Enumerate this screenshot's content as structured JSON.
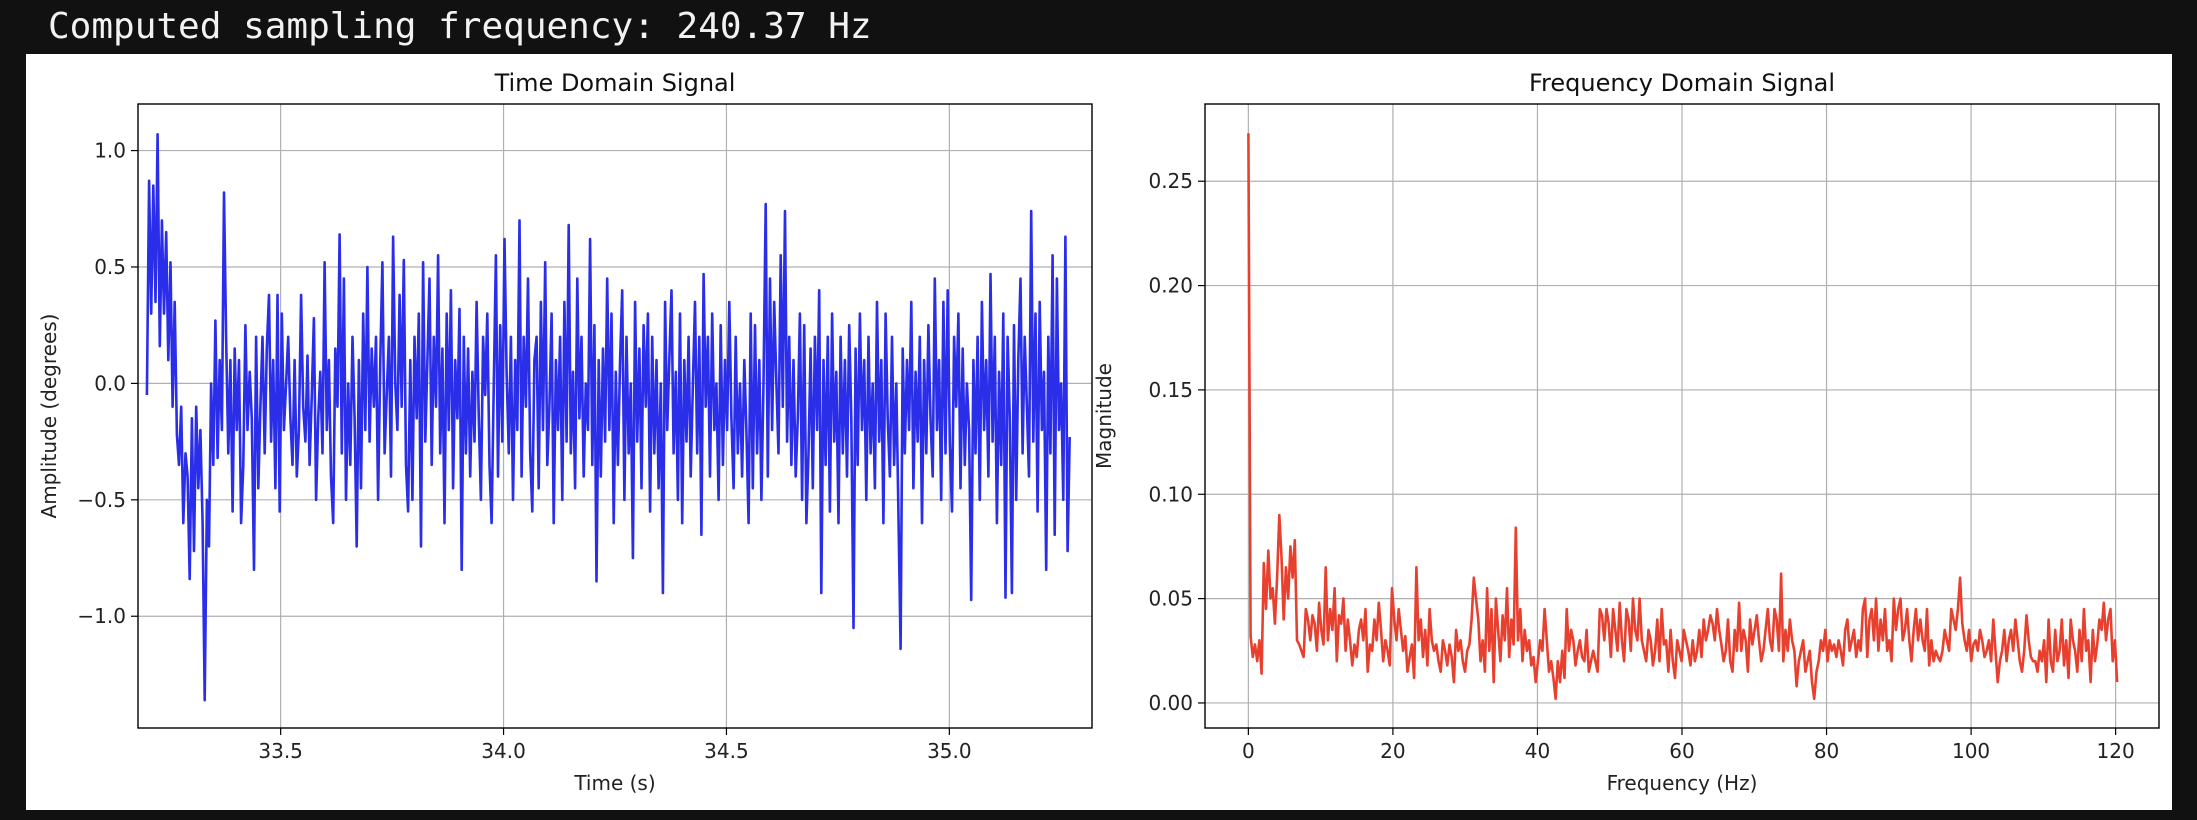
{
  "output": {
    "text": "Computed sampling frequency: 240.37 Hz"
  },
  "colors": {
    "background": "#111111",
    "figure": "#ffffff",
    "grid": "#b0b0b0",
    "time_series": "#2a2ee8",
    "freq_series": "#e8402f"
  },
  "chart_data": [
    {
      "type": "line",
      "title": "Time Domain Signal",
      "xlabel": "Time (s)",
      "ylabel": "Amplitude (degrees)",
      "xlim": [
        33.18,
        35.32
      ],
      "ylim": [
        -1.48,
        1.2
      ],
      "xticks": [
        33.5,
        34.0,
        34.5,
        35.0
      ],
      "xtick_labels": [
        "33.5",
        "34.0",
        "34.5",
        "35.0"
      ],
      "yticks": [
        -1.0,
        -0.5,
        0.0,
        0.5,
        1.0
      ],
      "ytick_labels": [
        "−1.0",
        "−0.5",
        "0.0",
        "0.5",
        "1.0"
      ],
      "grid": true,
      "color": "#2a2ee8",
      "x_start": 33.2,
      "x_end": 35.27,
      "values": [
        -0.05,
        0.87,
        0.3,
        0.85,
        0.35,
        1.07,
        0.16,
        0.7,
        0.3,
        0.65,
        0.1,
        0.52,
        -0.1,
        0.35,
        -0.22,
        -0.35,
        -0.1,
        -0.6,
        -0.3,
        -0.4,
        -0.84,
        -0.15,
        -0.72,
        -0.1,
        -0.45,
        -0.2,
        -0.6,
        -1.36,
        -0.5,
        -0.7,
        0.0,
        -0.35,
        0.27,
        -0.32,
        0.1,
        -0.2,
        0.82,
        0.2,
        -0.3,
        0.1,
        -0.55,
        0.15,
        -0.2,
        0.1,
        -0.6,
        -0.35,
        0.25,
        -0.2,
        0.05,
        -0.15,
        -0.8,
        0.2,
        -0.45,
        -0.1,
        0.2,
        -0.3,
        0.15,
        0.38,
        -0.25,
        0.1,
        -0.45,
        0.38,
        -0.55,
        0.3,
        -0.2,
        0.0,
        0.2,
        -0.15,
        -0.35,
        0.1,
        -0.4,
        -0.2,
        0.38,
        -0.1,
        -0.25,
        0.12,
        -0.35,
        -0.05,
        0.28,
        -0.5,
        -0.15,
        0.05,
        -0.3,
        0.52,
        -0.2,
        0.1,
        -0.4,
        -0.6,
        0.15,
        -0.1,
        0.64,
        -0.3,
        0.45,
        -0.5,
        0.0,
        -0.35,
        0.2,
        -0.15,
        -0.7,
        0.1,
        -0.45,
        0.3,
        -0.2,
        0.5,
        -0.25,
        0.15,
        -0.1,
        0.2,
        -0.5,
        0.1,
        0.52,
        -0.3,
        -0.05,
        0.2,
        -0.4,
        0.63,
        0.0,
        -0.2,
        0.38,
        -0.1,
        0.53,
        -0.35,
        -0.55,
        0.1,
        -0.5,
        0.2,
        -0.15,
        0.3,
        -0.7,
        0.52,
        -0.25,
        0.1,
        0.45,
        -0.35,
        0.2,
        -0.1,
        0.55,
        -0.3,
        0.15,
        -0.6,
        0.3,
        -0.2,
        0.4,
        -0.45,
        0.1,
        -0.15,
        0.32,
        -0.8,
        0.2,
        -0.3,
        0.15,
        -0.4,
        0.05,
        -0.25,
        0.35,
        -0.15,
        -0.5,
        0.2,
        -0.05,
        0.3,
        -0.35,
        -0.6,
        0.0,
        0.55,
        -0.4,
        0.25,
        -0.25,
        0.62,
        0.05,
        -0.3,
        0.2,
        -0.5,
        0.1,
        -0.2,
        0.7,
        -0.4,
        0.2,
        -0.1,
        0.45,
        -0.3,
        -0.55,
        0.1,
        0.2,
        -0.45,
        0.35,
        -0.2,
        0.52,
        -0.35,
        -0.1,
        0.3,
        -0.6,
        0.1,
        -0.2,
        0.2,
        -0.5,
        0.35,
        -0.25,
        0.68,
        -0.3,
        0.05,
        -0.45,
        0.45,
        -0.15,
        0.2,
        -0.4,
        0.0,
        -0.2,
        0.62,
        -0.35,
        0.25,
        -0.85,
        0.1,
        -0.4,
        0.15,
        -0.25,
        0.45,
        -0.2,
        0.3,
        -0.6,
        0.05,
        -0.35,
        0.1,
        0.4,
        -0.5,
        0.2,
        -0.3,
        0.0,
        -0.75,
        0.35,
        -0.25,
        0.15,
        -0.45,
        0.25,
        -0.1,
        0.3,
        -0.55,
        0.2,
        -0.3,
        0.1,
        -0.45,
        0.0,
        -0.9,
        0.35,
        -0.2,
        0.1,
        0.4,
        -0.3,
        0.05,
        -0.5,
        0.3,
        -0.6,
        0.1,
        -0.25,
        0.2,
        -0.4,
        0.0,
        0.35,
        -0.3,
        0.2,
        -0.65,
        0.47,
        -0.1,
        0.2,
        -0.4,
        0.3,
        -0.2,
        0.0,
        -0.5,
        0.25,
        -0.35,
        0.1,
        -0.2,
        0.35,
        -0.15,
        -0.45,
        0.2,
        -0.3,
        0.0,
        -0.4,
        0.1,
        -0.2,
        -0.6,
        0.3,
        -0.45,
        0.25,
        -0.3,
        0.1,
        -0.5,
        0.0,
        0.77,
        -0.4,
        0.45,
        -0.2,
        0.35,
        0.0,
        -0.3,
        0.55,
        -0.1,
        0.74,
        -0.25,
        0.2,
        -0.35,
        0.1,
        -0.4,
        -0.15,
        0.3,
        -0.5,
        0.25,
        -0.6,
        -0.3,
        0.15,
        -0.45,
        0.2,
        -0.2,
        0.4,
        -0.9,
        0.1,
        -0.35,
        0.2,
        -0.55,
        0.3,
        -0.25,
        0.05,
        -0.6,
        0.2,
        -0.3,
        0.1,
        -0.4,
        0.25,
        -0.15,
        -1.05,
        0.15,
        -0.35,
        0.3,
        -0.2,
        0.1,
        -0.5,
        0.2,
        -0.3,
        0.0,
        -0.45,
        0.35,
        -0.25,
        0.1,
        -0.6,
        0.3,
        -0.15,
        -0.4,
        0.2,
        -0.35,
        0.0,
        -0.55,
        -1.14,
        0.15,
        -0.3,
        0.1,
        -0.2,
        0.35,
        -0.45,
        0.05,
        -0.25,
        0.2,
        -0.6,
        0.1,
        -0.3,
        0.25,
        -0.15,
        -0.4,
        0.45,
        -0.2,
        0.1,
        -0.5,
        0.35,
        -0.3,
        0.4,
        -0.25,
        -0.55,
        0.2,
        -0.1,
        0.3,
        -0.45,
        0.15,
        -0.35,
        0.0,
        -0.2,
        -0.93,
        0.1,
        -0.3,
        0.2,
        -0.5,
        0.35,
        -0.2,
        0.1,
        -0.4,
        0.47,
        -0.25,
        0.2,
        -0.6,
        0.05,
        -0.35,
        0.3,
        -0.92,
        0.2,
        -0.15,
        -0.9,
        0.25,
        -0.5,
        0.1,
        0.45,
        -0.3,
        0.2,
        -0.1,
        -0.4,
        0.74,
        -0.25,
        0.3,
        -0.55,
        0.35,
        -0.2,
        0.05,
        -0.8,
        0.2,
        -0.3,
        0.55,
        -0.65,
        0.45,
        -0.2,
        0.0,
        -0.5,
        0.63,
        -0.72,
        -0.23
      ]
    },
    {
      "type": "line",
      "title": "Frequency Domain Signal",
      "xlabel": "Frequency (Hz)",
      "ylabel": "Magnitude",
      "xlim": [
        -6,
        126
      ],
      "ylim": [
        -0.012,
        0.287
      ],
      "xticks": [
        0,
        20,
        40,
        60,
        80,
        100,
        120
      ],
      "xtick_labels": [
        "0",
        "20",
        "40",
        "60",
        "80",
        "100",
        "120"
      ],
      "yticks": [
        0.0,
        0.05,
        0.1,
        0.15,
        0.2,
        0.25
      ],
      "ytick_labels": [
        "0.00",
        "0.05",
        "0.10",
        "0.15",
        "0.20",
        "0.25"
      ],
      "grid": true,
      "color": "#e8402f",
      "x_start": 0,
      "x_end": 120.2,
      "values": [
        0.273,
        0.032,
        0.022,
        0.028,
        0.02,
        0.03,
        0.014,
        0.067,
        0.045,
        0.073,
        0.05,
        0.055,
        0.038,
        0.06,
        0.09,
        0.07,
        0.04,
        0.065,
        0.05,
        0.075,
        0.06,
        0.078,
        0.03,
        0.028,
        0.025,
        0.022,
        0.045,
        0.04,
        0.03,
        0.042,
        0.038,
        0.025,
        0.048,
        0.035,
        0.028,
        0.065,
        0.03,
        0.045,
        0.035,
        0.055,
        0.02,
        0.042,
        0.038,
        0.05,
        0.025,
        0.04,
        0.03,
        0.018,
        0.028,
        0.022,
        0.035,
        0.04,
        0.03,
        0.045,
        0.015,
        0.028,
        0.025,
        0.04,
        0.03,
        0.048,
        0.035,
        0.02,
        0.03,
        0.025,
        0.018,
        0.055,
        0.04,
        0.03,
        0.045,
        0.035,
        0.025,
        0.032,
        0.015,
        0.022,
        0.028,
        0.012,
        0.065,
        0.03,
        0.04,
        0.022,
        0.035,
        0.018,
        0.045,
        0.03,
        0.025,
        0.028,
        0.02,
        0.015,
        0.03,
        0.025,
        0.018,
        0.028,
        0.022,
        0.01,
        0.035,
        0.025,
        0.03,
        0.02,
        0.015,
        0.025,
        0.028,
        0.04,
        0.06,
        0.05,
        0.04,
        0.02,
        0.03,
        0.015,
        0.055,
        0.025,
        0.045,
        0.01,
        0.05,
        0.035,
        0.02,
        0.042,
        0.03,
        0.055,
        0.022,
        0.04,
        0.028,
        0.084,
        0.03,
        0.045,
        0.02,
        0.035,
        0.025,
        0.03,
        0.018,
        0.022,
        0.01,
        0.02,
        0.03,
        0.025,
        0.045,
        0.03,
        0.015,
        0.02,
        0.012,
        0.002,
        0.02,
        0.01,
        0.025,
        0.012,
        0.045,
        0.025,
        0.035,
        0.03,
        0.018,
        0.025,
        0.03,
        0.022,
        0.02,
        0.035,
        0.015,
        0.02,
        0.025,
        0.02,
        0.015,
        0.045,
        0.042,
        0.03,
        0.045,
        0.038,
        0.022,
        0.045,
        0.035,
        0.025,
        0.048,
        0.03,
        0.02,
        0.045,
        0.04,
        0.025,
        0.05,
        0.035,
        0.03,
        0.05,
        0.03,
        0.025,
        0.02,
        0.035,
        0.03,
        0.018,
        0.025,
        0.04,
        0.02,
        0.045,
        0.028,
        0.03,
        0.015,
        0.035,
        0.02,
        0.012,
        0.03,
        0.025,
        0.02,
        0.035,
        0.03,
        0.025,
        0.018,
        0.03,
        0.02,
        0.025,
        0.035,
        0.022,
        0.04,
        0.03,
        0.035,
        0.042,
        0.038,
        0.03,
        0.045,
        0.035,
        0.028,
        0.02,
        0.025,
        0.04,
        0.02,
        0.015,
        0.035,
        0.025,
        0.048,
        0.025,
        0.035,
        0.03,
        0.015,
        0.04,
        0.028,
        0.035,
        0.042,
        0.03,
        0.02,
        0.025,
        0.035,
        0.045,
        0.03,
        0.025,
        0.045,
        0.04,
        0.025,
        0.062,
        0.02,
        0.035,
        0.025,
        0.04,
        0.03,
        0.025,
        0.008,
        0.02,
        0.025,
        0.03,
        0.015,
        0.02,
        0.025,
        0.01,
        0.002,
        0.015,
        0.02,
        0.03,
        0.025,
        0.035,
        0.02,
        0.03,
        0.025,
        0.028,
        0.022,
        0.03,
        0.025,
        0.018,
        0.035,
        0.04,
        0.025,
        0.03,
        0.035,
        0.022,
        0.03,
        0.025,
        0.045,
        0.05,
        0.022,
        0.04,
        0.045,
        0.03,
        0.05,
        0.025,
        0.04,
        0.03,
        0.045,
        0.025,
        0.03,
        0.02,
        0.05,
        0.035,
        0.045,
        0.05,
        0.03,
        0.035,
        0.045,
        0.03,
        0.02,
        0.035,
        0.045,
        0.03,
        0.04,
        0.03,
        0.025,
        0.045,
        0.018,
        0.03,
        0.02,
        0.025,
        0.022,
        0.02,
        0.025,
        0.035,
        0.03,
        0.025,
        0.045,
        0.04,
        0.035,
        0.045,
        0.06,
        0.038,
        0.03,
        0.025,
        0.035,
        0.02,
        0.028,
        0.03,
        0.025,
        0.035,
        0.03,
        0.022,
        0.025,
        0.03,
        0.02,
        0.04,
        0.025,
        0.01,
        0.02,
        0.025,
        0.035,
        0.02,
        0.03,
        0.035,
        0.025,
        0.04,
        0.03,
        0.02,
        0.015,
        0.025,
        0.042,
        0.03,
        0.022,
        0.02,
        0.02,
        0.015,
        0.025,
        0.02,
        0.03,
        0.01,
        0.04,
        0.02,
        0.015,
        0.035,
        0.02,
        0.025,
        0.04,
        0.018,
        0.03,
        0.012,
        0.04,
        0.03,
        0.025,
        0.015,
        0.035,
        0.02,
        0.045,
        0.025,
        0.03,
        0.01,
        0.035,
        0.02,
        0.028,
        0.04,
        0.035,
        0.048,
        0.03,
        0.04,
        0.045,
        0.02,
        0.03,
        0.01
      ]
    }
  ]
}
